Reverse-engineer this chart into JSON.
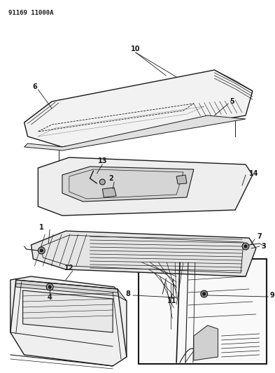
{
  "title_code": "91169 11000A",
  "bg_color": "#ffffff",
  "line_color": "#1a1a1a",
  "fig_width": 3.93,
  "fig_height": 5.33,
  "dpi": 100,
  "label_positions": {
    "10": [
      0.5,
      0.855,
      0.48,
      0.82
    ],
    "6": [
      0.12,
      0.76,
      0.22,
      0.735
    ],
    "5": [
      0.82,
      0.695,
      0.75,
      0.705
    ],
    "13": [
      0.33,
      0.605,
      0.4,
      0.595
    ],
    "2": [
      0.38,
      0.58,
      0.43,
      0.565
    ],
    "14": [
      0.88,
      0.57,
      0.82,
      0.565
    ],
    "1": [
      0.1,
      0.455,
      0.18,
      0.45
    ],
    "7": [
      0.85,
      0.49,
      0.8,
      0.485
    ],
    "3": [
      0.88,
      0.465,
      0.82,
      0.462
    ],
    "4": [
      0.19,
      0.385,
      0.22,
      0.408
    ],
    "11": [
      0.42,
      0.365,
      0.4,
      0.39
    ],
    "12": [
      0.25,
      0.39,
      0.28,
      0.408
    ],
    "8": [
      0.54,
      0.29,
      0.58,
      0.305
    ],
    "9": [
      0.88,
      0.295,
      0.82,
      0.302
    ]
  }
}
